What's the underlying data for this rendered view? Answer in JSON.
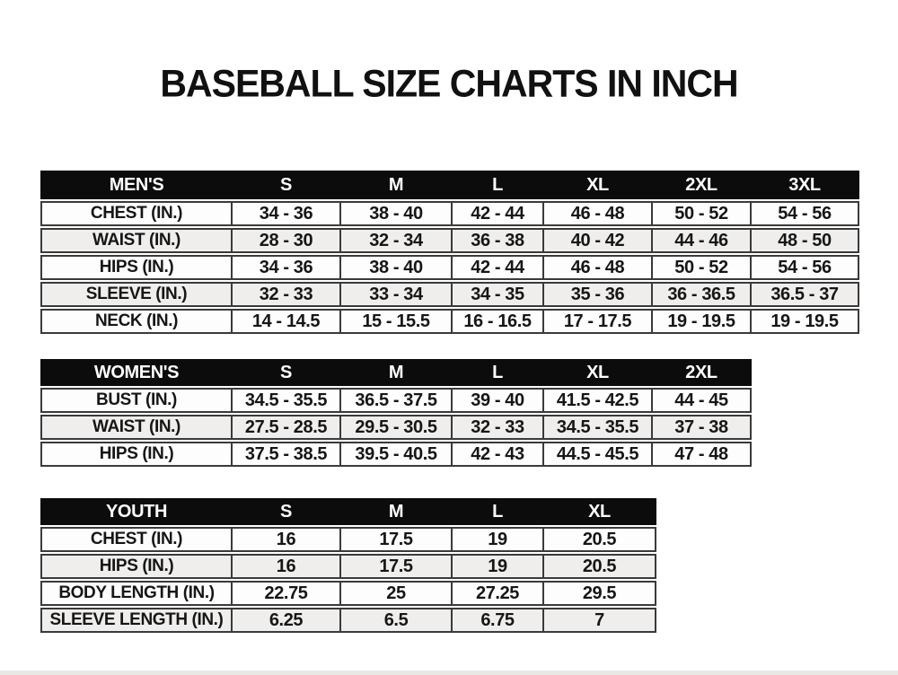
{
  "title": "BASEBALL SIZE CHARTS IN INCH",
  "colors": {
    "header_bg": "#0c0c0c",
    "header_text": "#ffffff",
    "border": "#3a3a3a",
    "row_bg": "#fdfdfd",
    "row_alt_bg": "#efeeec"
  },
  "tables": [
    {
      "id": "mens",
      "label": "MEN'S",
      "sizes": [
        "S",
        "M",
        "L",
        "XL",
        "2XL",
        "3XL"
      ],
      "rows": [
        {
          "label": "CHEST (IN.)",
          "values": [
            "34 - 36",
            "38 - 40",
            "42 - 44",
            "46 - 48",
            "50 - 52",
            "54 - 56"
          ]
        },
        {
          "label": "WAIST (IN.)",
          "values": [
            "28 - 30",
            "32 - 34",
            "36 - 38",
            "40 - 42",
            "44 - 46",
            "48 - 50"
          ]
        },
        {
          "label": "HIPS (IN.)",
          "values": [
            "34 - 36",
            "38 - 40",
            "42 - 44",
            "46 - 48",
            "50 - 52",
            "54 - 56"
          ]
        },
        {
          "label": "SLEEVE (IN.)",
          "values": [
            "32 - 33",
            "33 - 34",
            "34 - 35",
            "35 - 36",
            "36 - 36.5",
            "36.5 - 37"
          ]
        },
        {
          "label": "NECK (IN.)",
          "values": [
            "14 - 14.5",
            "15 - 15.5",
            "16 - 16.5",
            "17 - 17.5",
            "19 - 19.5",
            "19 - 19.5"
          ]
        }
      ]
    },
    {
      "id": "womens",
      "label": "WOMEN'S",
      "sizes": [
        "S",
        "M",
        "L",
        "XL",
        "2XL"
      ],
      "rows": [
        {
          "label": "BUST (IN.)",
          "values": [
            "34.5 - 35.5",
            "36.5 - 37.5",
            "39 - 40",
            "41.5 - 42.5",
            "44 - 45"
          ]
        },
        {
          "label": "WAIST (IN.)",
          "values": [
            "27.5 - 28.5",
            "29.5 - 30.5",
            "32 - 33",
            "34.5 - 35.5",
            "37 - 38"
          ]
        },
        {
          "label": "HIPS (IN.)",
          "values": [
            "37.5 - 38.5",
            "39.5 - 40.5",
            "42 - 43",
            "44.5 - 45.5",
            "47 - 48"
          ]
        }
      ]
    },
    {
      "id": "youth",
      "label": "YOUTH",
      "sizes": [
        "S",
        "M",
        "L",
        "XL"
      ],
      "rows": [
        {
          "label": "CHEST (IN.)",
          "values": [
            "16",
            "17.5",
            "19",
            "20.5"
          ]
        },
        {
          "label": "HIPS (IN.)",
          "values": [
            "16",
            "17.5",
            "19",
            "20.5"
          ]
        },
        {
          "label": "BODY LENGTH (IN.)",
          "values": [
            "22.75",
            "25",
            "27.25",
            "29.5"
          ]
        },
        {
          "label": "SLEEVE LENGTH (IN.)",
          "values": [
            "6.25",
            "6.5",
            "6.75",
            "7"
          ]
        }
      ]
    }
  ]
}
